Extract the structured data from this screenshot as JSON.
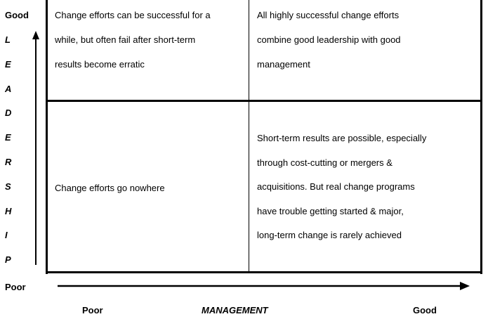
{
  "y_axis": {
    "top_label": "Good",
    "bottom_label": "Poor",
    "title_letters": [
      "L",
      "E",
      "A",
      "D",
      "E",
      "R",
      "S",
      "H",
      "I",
      "P"
    ]
  },
  "x_axis": {
    "left_label": "Poor",
    "title": "MANAGEMENT",
    "right_label": "Good"
  },
  "quadrants": {
    "top_left": [
      "Change efforts can be successful for a",
      "while, but often fail after short-term",
      "results become erratic"
    ],
    "top_right": [
      "All highly successful change efforts",
      "combine good leadership with good",
      "management"
    ],
    "bottom_left": [
      "Change efforts go nowhere"
    ],
    "bottom_right": [
      "Short-term results are possible, especially",
      "through cost-cutting or mergers &",
      "acquisitions. But real change programs",
      "have trouble getting started & major,",
      "long-term change is rarely achieved"
    ]
  }
}
